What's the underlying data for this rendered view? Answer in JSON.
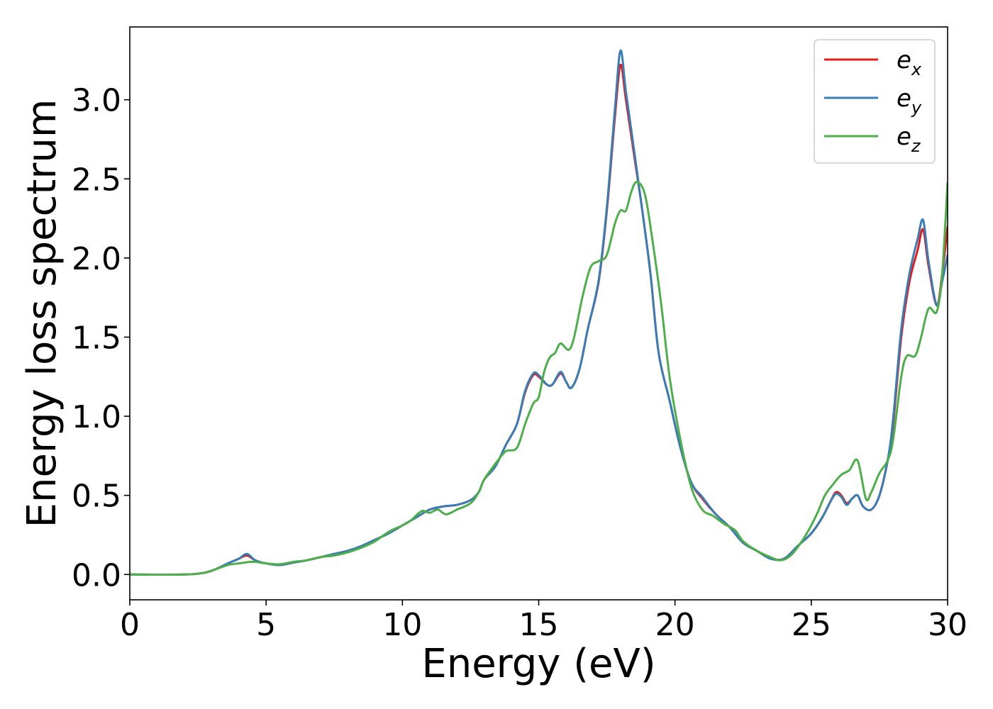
{
  "chart_data": {
    "type": "line",
    "title": "",
    "xlabel": "Energy (eV)",
    "ylabel": "Energy loss spectrum",
    "xlim": [
      0,
      30
    ],
    "ylim": [
      -0.16,
      3.46
    ],
    "xticks": [
      0,
      5,
      10,
      15,
      20,
      25,
      30
    ],
    "xtick_labels": [
      "0",
      "5",
      "10",
      "15",
      "20",
      "25",
      "30"
    ],
    "yticks": [
      0.0,
      0.5,
      1.0,
      1.5,
      2.0,
      2.5,
      3.0
    ],
    "ytick_labels": [
      "0.0",
      "0.5",
      "1.0",
      "1.5",
      "2.0",
      "2.5",
      "3.0"
    ],
    "grid": false,
    "legend_position": "top-right",
    "series": [
      {
        "name": "e",
        "subscript": "x",
        "color": "#e41a1c",
        "points": [
          [
            0,
            0
          ],
          [
            2,
            0
          ],
          [
            2.7,
            0.01
          ],
          [
            3.1,
            0.03
          ],
          [
            3.6,
            0.07
          ],
          [
            4.0,
            0.1
          ],
          [
            4.3,
            0.12
          ],
          [
            4.6,
            0.09
          ],
          [
            5.0,
            0.07
          ],
          [
            5.5,
            0.06
          ],
          [
            6.0,
            0.075
          ],
          [
            6.5,
            0.09
          ],
          [
            7.0,
            0.11
          ],
          [
            7.5,
            0.13
          ],
          [
            8.0,
            0.15
          ],
          [
            8.5,
            0.18
          ],
          [
            9.0,
            0.22
          ],
          [
            9.5,
            0.26
          ],
          [
            10.0,
            0.31
          ],
          [
            10.5,
            0.36
          ],
          [
            11.0,
            0.41
          ],
          [
            11.5,
            0.43
          ],
          [
            12.0,
            0.44
          ],
          [
            12.5,
            0.47
          ],
          [
            12.8,
            0.52
          ],
          [
            13.0,
            0.6
          ],
          [
            13.4,
            0.68
          ],
          [
            13.8,
            0.82
          ],
          [
            14.2,
            0.95
          ],
          [
            14.5,
            1.15
          ],
          [
            14.8,
            1.26
          ],
          [
            15.0,
            1.25
          ],
          [
            15.3,
            1.2
          ],
          [
            15.5,
            1.2
          ],
          [
            15.8,
            1.27
          ],
          [
            16.0,
            1.22
          ],
          [
            16.2,
            1.18
          ],
          [
            16.5,
            1.3
          ],
          [
            16.8,
            1.55
          ],
          [
            17.2,
            1.85
          ],
          [
            17.5,
            2.3
          ],
          [
            17.8,
            2.9
          ],
          [
            18.0,
            3.22
          ],
          [
            18.2,
            3.0
          ],
          [
            18.5,
            2.65
          ],
          [
            18.8,
            2.3
          ],
          [
            19.1,
            1.9
          ],
          [
            19.4,
            1.4
          ],
          [
            19.8,
            1.1
          ],
          [
            20.2,
            0.8
          ],
          [
            20.6,
            0.58
          ],
          [
            21.0,
            0.48
          ],
          [
            21.5,
            0.38
          ],
          [
            22.0,
            0.3
          ],
          [
            22.5,
            0.2
          ],
          [
            23.0,
            0.15
          ],
          [
            23.5,
            0.1
          ],
          [
            24.0,
            0.1
          ],
          [
            24.5,
            0.18
          ],
          [
            25.0,
            0.26
          ],
          [
            25.4,
            0.36
          ],
          [
            25.7,
            0.46
          ],
          [
            25.9,
            0.52
          ],
          [
            26.1,
            0.5
          ],
          [
            26.3,
            0.45
          ],
          [
            26.5,
            0.48
          ],
          [
            26.7,
            0.5
          ],
          [
            26.9,
            0.43
          ],
          [
            27.2,
            0.41
          ],
          [
            27.5,
            0.5
          ],
          [
            27.8,
            0.72
          ],
          [
            28.0,
            0.95
          ],
          [
            28.3,
            1.5
          ],
          [
            28.6,
            1.85
          ],
          [
            28.9,
            2.05
          ],
          [
            29.1,
            2.18
          ],
          [
            29.3,
            1.95
          ],
          [
            29.6,
            1.7
          ],
          [
            29.8,
            1.9
          ],
          [
            30.0,
            2.2
          ]
        ]
      },
      {
        "name": "e",
        "subscript": "y",
        "color": "#377eb8",
        "points": [
          [
            0,
            0
          ],
          [
            2,
            0
          ],
          [
            2.7,
            0.01
          ],
          [
            3.1,
            0.03
          ],
          [
            3.6,
            0.07
          ],
          [
            4.0,
            0.1
          ],
          [
            4.3,
            0.13
          ],
          [
            4.6,
            0.09
          ],
          [
            5.0,
            0.07
          ],
          [
            5.5,
            0.06
          ],
          [
            6.0,
            0.075
          ],
          [
            6.5,
            0.09
          ],
          [
            7.0,
            0.11
          ],
          [
            7.5,
            0.13
          ],
          [
            8.0,
            0.15
          ],
          [
            8.5,
            0.18
          ],
          [
            9.0,
            0.22
          ],
          [
            9.5,
            0.26
          ],
          [
            10.0,
            0.31
          ],
          [
            10.5,
            0.36
          ],
          [
            11.0,
            0.41
          ],
          [
            11.5,
            0.43
          ],
          [
            12.0,
            0.44
          ],
          [
            12.5,
            0.47
          ],
          [
            12.8,
            0.52
          ],
          [
            13.0,
            0.6
          ],
          [
            13.4,
            0.68
          ],
          [
            13.8,
            0.82
          ],
          [
            14.2,
            0.95
          ],
          [
            14.5,
            1.16
          ],
          [
            14.8,
            1.27
          ],
          [
            15.0,
            1.26
          ],
          [
            15.3,
            1.2
          ],
          [
            15.5,
            1.2
          ],
          [
            15.8,
            1.28
          ],
          [
            16.0,
            1.22
          ],
          [
            16.2,
            1.18
          ],
          [
            16.5,
            1.3
          ],
          [
            16.8,
            1.55
          ],
          [
            17.2,
            1.86
          ],
          [
            17.5,
            2.32
          ],
          [
            17.8,
            2.95
          ],
          [
            18.0,
            3.31
          ],
          [
            18.2,
            3.05
          ],
          [
            18.5,
            2.68
          ],
          [
            18.8,
            2.3
          ],
          [
            19.1,
            1.9
          ],
          [
            19.4,
            1.4
          ],
          [
            19.8,
            1.1
          ],
          [
            20.2,
            0.8
          ],
          [
            20.6,
            0.58
          ],
          [
            21.0,
            0.49
          ],
          [
            21.5,
            0.38
          ],
          [
            22.0,
            0.3
          ],
          [
            22.5,
            0.2
          ],
          [
            23.0,
            0.15
          ],
          [
            23.5,
            0.1
          ],
          [
            24.0,
            0.1
          ],
          [
            24.5,
            0.18
          ],
          [
            25.0,
            0.26
          ],
          [
            25.4,
            0.36
          ],
          [
            25.7,
            0.46
          ],
          [
            25.9,
            0.51
          ],
          [
            26.1,
            0.49
          ],
          [
            26.3,
            0.44
          ],
          [
            26.5,
            0.48
          ],
          [
            26.7,
            0.5
          ],
          [
            26.9,
            0.43
          ],
          [
            27.2,
            0.41
          ],
          [
            27.5,
            0.5
          ],
          [
            27.8,
            0.72
          ],
          [
            28.0,
            0.98
          ],
          [
            28.3,
            1.55
          ],
          [
            28.6,
            1.9
          ],
          [
            28.9,
            2.12
          ],
          [
            29.1,
            2.24
          ],
          [
            29.3,
            1.98
          ],
          [
            29.6,
            1.7
          ],
          [
            29.8,
            1.85
          ],
          [
            30.0,
            2.02
          ]
        ]
      },
      {
        "name": "e",
        "subscript": "z",
        "color": "#4daf4a",
        "points": [
          [
            0,
            0
          ],
          [
            2,
            0
          ],
          [
            2.7,
            0.01
          ],
          [
            3.1,
            0.03
          ],
          [
            3.6,
            0.06
          ],
          [
            4.0,
            0.07
          ],
          [
            4.5,
            0.08
          ],
          [
            5.0,
            0.07
          ],
          [
            5.5,
            0.065
          ],
          [
            6.0,
            0.08
          ],
          [
            6.5,
            0.09
          ],
          [
            7.0,
            0.11
          ],
          [
            7.5,
            0.12
          ],
          [
            8.0,
            0.14
          ],
          [
            8.5,
            0.17
          ],
          [
            9.0,
            0.21
          ],
          [
            9.5,
            0.27
          ],
          [
            10.0,
            0.31
          ],
          [
            10.3,
            0.34
          ],
          [
            10.7,
            0.4
          ],
          [
            11.0,
            0.39
          ],
          [
            11.3,
            0.41
          ],
          [
            11.6,
            0.38
          ],
          [
            12.0,
            0.41
          ],
          [
            12.5,
            0.45
          ],
          [
            12.8,
            0.52
          ],
          [
            13.0,
            0.6
          ],
          [
            13.5,
            0.72
          ],
          [
            13.8,
            0.78
          ],
          [
            14.2,
            0.8
          ],
          [
            14.5,
            0.95
          ],
          [
            14.8,
            1.08
          ],
          [
            15.0,
            1.12
          ],
          [
            15.2,
            1.28
          ],
          [
            15.4,
            1.37
          ],
          [
            15.6,
            1.4
          ],
          [
            15.8,
            1.46
          ],
          [
            16.1,
            1.42
          ],
          [
            16.3,
            1.5
          ],
          [
            16.6,
            1.75
          ],
          [
            16.9,
            1.94
          ],
          [
            17.2,
            1.98
          ],
          [
            17.5,
            2.02
          ],
          [
            17.8,
            2.22
          ],
          [
            18.0,
            2.3
          ],
          [
            18.2,
            2.3
          ],
          [
            18.4,
            2.42
          ],
          [
            18.6,
            2.48
          ],
          [
            18.9,
            2.4
          ],
          [
            19.2,
            2.08
          ],
          [
            19.5,
            1.7
          ],
          [
            19.8,
            1.25
          ],
          [
            20.2,
            0.85
          ],
          [
            20.6,
            0.55
          ],
          [
            21.0,
            0.41
          ],
          [
            21.4,
            0.37
          ],
          [
            21.8,
            0.32
          ],
          [
            22.2,
            0.28
          ],
          [
            22.5,
            0.21
          ],
          [
            23.0,
            0.15
          ],
          [
            23.5,
            0.11
          ],
          [
            23.9,
            0.09
          ],
          [
            24.3,
            0.13
          ],
          [
            24.8,
            0.25
          ],
          [
            25.2,
            0.38
          ],
          [
            25.5,
            0.5
          ],
          [
            25.8,
            0.57
          ],
          [
            26.1,
            0.63
          ],
          [
            26.4,
            0.66
          ],
          [
            26.7,
            0.72
          ],
          [
            27.0,
            0.48
          ],
          [
            27.2,
            0.52
          ],
          [
            27.5,
            0.64
          ],
          [
            27.8,
            0.72
          ],
          [
            28.0,
            0.85
          ],
          [
            28.3,
            1.25
          ],
          [
            28.5,
            1.38
          ],
          [
            28.8,
            1.38
          ],
          [
            29.0,
            1.48
          ],
          [
            29.3,
            1.68
          ],
          [
            29.6,
            1.66
          ],
          [
            29.8,
            1.9
          ],
          [
            30.0,
            2.48
          ]
        ]
      }
    ]
  }
}
